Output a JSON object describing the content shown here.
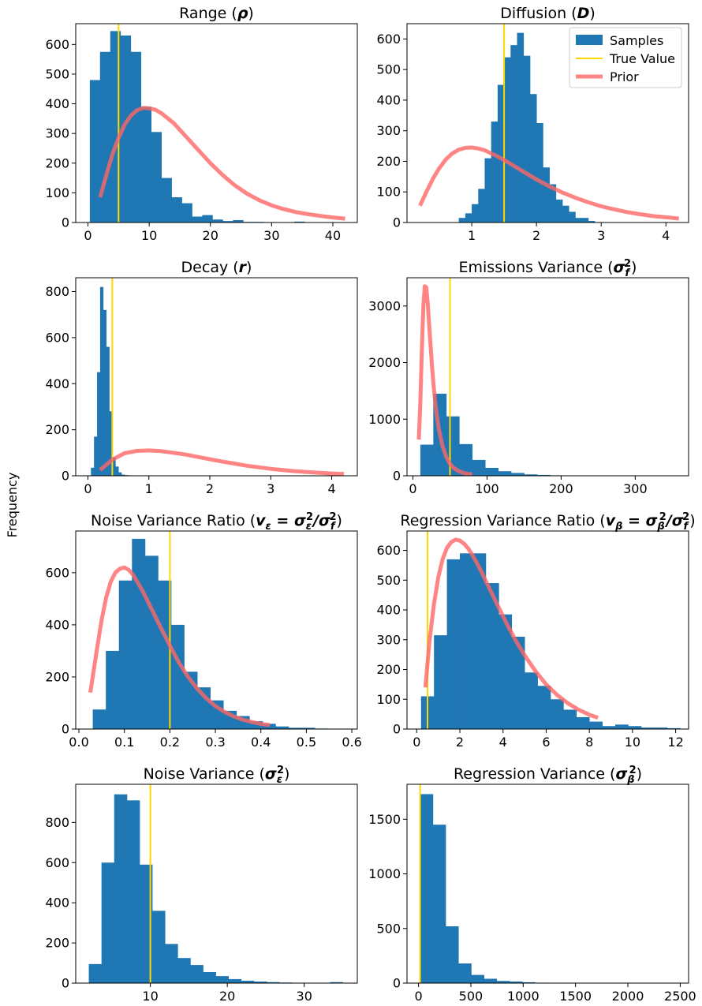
{
  "figure": {
    "ylabel": "Frequency"
  },
  "colors": {
    "samples": "#1f77b4",
    "true_value": "#ffd700",
    "prior": "#ff6666"
  },
  "legend": {
    "placement": "top-right of Diffusion panel",
    "entries": [
      {
        "label": "Samples",
        "kind": "patch"
      },
      {
        "label": "True Value",
        "kind": "line"
      },
      {
        "label": "Prior",
        "kind": "thick-line"
      }
    ]
  },
  "chart_data": [
    {
      "type": "bar",
      "title_parts": [
        {
          "t": "Range ("
        },
        {
          "t": "ρ",
          "style": "bi"
        },
        {
          "t": ")"
        }
      ],
      "xlim": [
        -2,
        44
      ],
      "ylim": [
        0,
        670
      ],
      "xticks": [
        0,
        10,
        20,
        30,
        40
      ],
      "yticks": [
        0,
        100,
        200,
        300,
        400,
        500,
        600
      ],
      "hist": {
        "edges": [
          0.3,
          1.97,
          3.64,
          5.31,
          6.98,
          8.65,
          10.32,
          11.99,
          13.66,
          15.33,
          17.0,
          18.67,
          20.34,
          22.01,
          23.68,
          25.35,
          27.02,
          28.69,
          30.36,
          32.03,
          33.7,
          35.37
        ],
        "counts": [
          480,
          575,
          645,
          630,
          575,
          390,
          305,
          150,
          85,
          65,
          20,
          25,
          10,
          5,
          8,
          2,
          2,
          1,
          1,
          1,
          3
        ]
      },
      "true_value": 5,
      "prior": {
        "x": [
          2,
          3,
          4,
          5,
          6,
          7,
          8,
          9,
          10,
          11,
          12,
          14,
          16,
          18,
          20,
          22,
          24,
          26,
          28,
          30,
          32,
          34,
          36,
          38,
          40,
          42
        ],
        "y": [
          85,
          160,
          230,
          285,
          330,
          360,
          378,
          386,
          385,
          380,
          368,
          335,
          290,
          245,
          200,
          160,
          125,
          97,
          75,
          58,
          45,
          35,
          28,
          22,
          17,
          13
        ]
      }
    },
    {
      "type": "bar",
      "title_parts": [
        {
          "t": "Diffusion ("
        },
        {
          "t": "D",
          "style": "bi"
        },
        {
          "t": ")"
        }
      ],
      "xlim": [
        0,
        4.35
      ],
      "ylim": [
        0,
        650
      ],
      "xticks": [
        1,
        2,
        3,
        4
      ],
      "yticks": [
        0,
        100,
        200,
        300,
        400,
        500,
        600
      ],
      "hist": {
        "edges": [
          0.8,
          0.9,
          1.0,
          1.1,
          1.2,
          1.3,
          1.4,
          1.5,
          1.6,
          1.7,
          1.8,
          1.9,
          2.0,
          2.1,
          2.2,
          2.3,
          2.4,
          2.5,
          2.6,
          2.7,
          2.8,
          2.9
        ],
        "counts": [
          15,
          30,
          60,
          110,
          210,
          330,
          450,
          540,
          580,
          620,
          545,
          420,
          325,
          180,
          125,
          75,
          55,
          35,
          15,
          15,
          5
        ]
      },
      "true_value": 1.5,
      "prior": {
        "x": [
          0.2,
          0.3,
          0.4,
          0.5,
          0.6,
          0.7,
          0.8,
          0.9,
          1.0,
          1.1,
          1.2,
          1.4,
          1.6,
          1.8,
          2.0,
          2.2,
          2.4,
          2.6,
          2.8,
          3.0,
          3.2,
          3.4,
          3.6,
          3.8,
          4.0,
          4.2
        ],
        "y": [
          55,
          100,
          143,
          178,
          206,
          226,
          238,
          244,
          245,
          242,
          236,
          216,
          192,
          166,
          141,
          118,
          98,
          81,
          66,
          53,
          43,
          34,
          27,
          21,
          17,
          13
        ]
      }
    },
    {
      "type": "bar",
      "title_parts": [
        {
          "t": "Decay ("
        },
        {
          "t": "r",
          "style": "bi"
        },
        {
          "t": ")"
        }
      ],
      "xlim": [
        -0.2,
        4.42
      ],
      "ylim": [
        0,
        860
      ],
      "xticks": [
        0,
        1,
        2,
        3,
        4
      ],
      "yticks": [
        0,
        200,
        400,
        600,
        800
      ],
      "hist": {
        "edges": [
          0.05,
          0.1,
          0.15,
          0.2,
          0.25,
          0.3,
          0.35,
          0.4,
          0.45,
          0.5,
          0.55,
          0.6,
          0.65,
          0.7
        ],
        "counts": [
          35,
          170,
          450,
          820,
          720,
          560,
          280,
          80,
          40,
          15,
          5,
          3,
          2
        ]
      },
      "true_value": 0.4,
      "prior": {
        "x": [
          0.2,
          0.4,
          0.6,
          0.8,
          1.0,
          1.2,
          1.4,
          1.6,
          1.8,
          2.0,
          2.2,
          2.4,
          2.6,
          2.8,
          3.0,
          3.2,
          3.4,
          3.6,
          3.8,
          4.0,
          4.2
        ],
        "y": [
          25,
          70,
          98,
          108,
          110,
          107,
          100,
          92,
          82,
          72,
          62,
          53,
          44,
          37,
          30,
          25,
          20,
          16,
          13,
          10,
          8
        ]
      }
    },
    {
      "type": "bar",
      "title_parts": [
        {
          "t": "Emissions Variance ("
        },
        {
          "t": "σ",
          "style": "bi"
        },
        {
          "t": "f",
          "style": "bi",
          "pos": "sub"
        },
        {
          "t": "2",
          "style": "b",
          "pos": "sup"
        },
        {
          "t": ")"
        }
      ],
      "xlim": [
        -8,
        372
      ],
      "ylim": [
        0,
        3500
      ],
      "xticks": [
        0,
        100,
        200,
        300
      ],
      "yticks": [
        0,
        1000,
        2000,
        3000
      ],
      "hist": {
        "edges": [
          10,
          27.5,
          45,
          62.5,
          80,
          97.5,
          115,
          132.5,
          150,
          167.5,
          185,
          202.5,
          220,
          237.5,
          255,
          272.5,
          290,
          307.5,
          325,
          342.5,
          360
        ],
        "counts": [
          550,
          1450,
          1050,
          560,
          280,
          140,
          80,
          50,
          25,
          15,
          8,
          5,
          5,
          3,
          2,
          1,
          1,
          1,
          1,
          1
        ]
      },
      "true_value": 50,
      "prior": {
        "x": [
          8,
          10,
          12,
          14,
          16,
          18,
          20,
          22,
          24,
          26,
          28,
          30,
          32,
          35,
          40,
          45,
          50,
          55,
          60,
          65,
          70,
          75,
          80
        ],
        "y": [
          640,
          1300,
          2200,
          3000,
          3350,
          3330,
          3050,
          2650,
          2250,
          1900,
          1580,
          1310,
          1080,
          820,
          520,
          330,
          210,
          140,
          95,
          65,
          45,
          32,
          22
        ]
      }
    },
    {
      "type": "bar",
      "title_parts": [
        {
          "t": "Noise Variance Ratio ("
        },
        {
          "t": "v",
          "style": "bi"
        },
        {
          "t": "ε",
          "style": "bi",
          "pos": "sub"
        },
        {
          "t": " = ",
          "style": "b"
        },
        {
          "t": "σ",
          "style": "bi"
        },
        {
          "t": "ε",
          "style": "bi",
          "pos": "sub"
        },
        {
          "t": "2",
          "style": "b",
          "pos": "sup"
        },
        {
          "t": "/",
          "style": "bi"
        },
        {
          "t": "σ",
          "style": "bi"
        },
        {
          "t": "f",
          "style": "bi",
          "pos": "sub"
        },
        {
          "t": "2",
          "style": "b",
          "pos": "sup"
        },
        {
          "t": ")"
        }
      ],
      "xlim": [
        -0.007,
        0.612
      ],
      "ylim": [
        0,
        760
      ],
      "xticks": [
        0.0,
        0.1,
        0.2,
        0.3,
        0.4,
        0.5,
        0.6
      ],
      "yticks": [
        0,
        200,
        400,
        600
      ],
      "hist": {
        "edges": [
          0.0305,
          0.0592,
          0.0879,
          0.1166,
          0.1453,
          0.174,
          0.2027,
          0.2314,
          0.2601,
          0.2888,
          0.3175,
          0.3462,
          0.3749,
          0.4036,
          0.4323,
          0.461,
          0.4897,
          0.5184,
          0.5471,
          0.5758,
          0.6045
        ],
        "counts": [
          75,
          300,
          570,
          730,
          665,
          570,
          400,
          220,
          160,
          110,
          70,
          50,
          30,
          20,
          10,
          5,
          5,
          2,
          1,
          1
        ]
      },
      "true_value": 0.2,
      "prior": {
        "x": [
          0.025,
          0.04,
          0.05,
          0.06,
          0.07,
          0.08,
          0.09,
          0.1,
          0.11,
          0.12,
          0.14,
          0.16,
          0.18,
          0.2,
          0.22,
          0.24,
          0.26,
          0.28,
          0.3,
          0.32,
          0.34,
          0.36,
          0.38,
          0.4,
          0.42
        ],
        "y": [
          140,
          310,
          420,
          505,
          565,
          600,
          615,
          620,
          610,
          590,
          530,
          460,
          390,
          320,
          255,
          200,
          155,
          118,
          88,
          66,
          49,
          36,
          27,
          20,
          15
        ]
      }
    },
    {
      "type": "bar",
      "title_parts": [
        {
          "t": "Regression Variance Ratio ("
        },
        {
          "t": "v",
          "style": "bi"
        },
        {
          "t": "β",
          "style": "bi",
          "pos": "sub"
        },
        {
          "t": " = ",
          "style": "b"
        },
        {
          "t": "σ",
          "style": "bi"
        },
        {
          "t": "β",
          "style": "bi",
          "pos": "sub"
        },
        {
          "t": "2",
          "style": "b",
          "pos": "sup"
        },
        {
          "t": "/",
          "style": "bi"
        },
        {
          "t": "σ",
          "style": "bi"
        },
        {
          "t": "f",
          "style": "bi",
          "pos": "sub"
        },
        {
          "t": "2",
          "style": "b",
          "pos": "sup"
        },
        {
          "t": ")"
        }
      ],
      "xlim": [
        -0.45,
        12.6
      ],
      "ylim": [
        0,
        665
      ],
      "xticks": [
        0,
        2,
        4,
        6,
        8,
        10,
        12
      ],
      "yticks": [
        0,
        100,
        200,
        300,
        400,
        500,
        600
      ],
      "hist": {
        "edges": [
          0.2,
          0.8,
          1.4,
          2.0,
          2.6,
          3.2,
          3.8,
          4.4,
          5.0,
          5.6,
          6.2,
          6.8,
          7.4,
          8.0,
          8.6,
          9.2,
          9.8,
          10.4,
          11.0,
          11.6,
          12.2
        ],
        "counts": [
          110,
          315,
          570,
          590,
          590,
          490,
          385,
          310,
          190,
          145,
          100,
          65,
          40,
          25,
          10,
          15,
          10,
          5,
          5,
          3
        ]
      },
      "true_value": 0.5,
      "prior": {
        "x": [
          0.4,
          0.6,
          0.8,
          1.0,
          1.2,
          1.4,
          1.6,
          1.8,
          2.0,
          2.2,
          2.4,
          2.6,
          2.8,
          3.0,
          3.4,
          3.8,
          4.2,
          4.6,
          5.0,
          5.5,
          6.0,
          6.5,
          7.0,
          7.5,
          8.0,
          8.4
        ],
        "y": [
          140,
          300,
          420,
          510,
          570,
          608,
          628,
          636,
          633,
          622,
          605,
          582,
          556,
          528,
          468,
          408,
          350,
          296,
          248,
          195,
          150,
          115,
          87,
          65,
          48,
          38
        ]
      }
    },
    {
      "type": "bar",
      "title_parts": [
        {
          "t": "Noise Variance ("
        },
        {
          "t": "σ",
          "style": "bi"
        },
        {
          "t": "ε",
          "style": "bi",
          "pos": "sub"
        },
        {
          "t": "2",
          "style": "b",
          "pos": "sup"
        },
        {
          "t": ")"
        }
      ],
      "xlim": [
        0.3,
        36.9
      ],
      "ylim": [
        0,
        990
      ],
      "xticks": [
        10,
        20,
        30
      ],
      "yticks": [
        0,
        200,
        400,
        600,
        800
      ],
      "hist": {
        "edges": [
          2,
          3.65,
          5.3,
          6.95,
          8.6,
          10.25,
          11.9,
          13.55,
          15.2,
          16.85,
          18.5,
          20.15,
          21.8,
          23.45,
          25.1,
          26.75,
          28.4,
          30.05,
          31.7,
          33.35,
          35.0
        ],
        "counts": [
          95,
          600,
          940,
          910,
          590,
          360,
          195,
          125,
          90,
          55,
          35,
          20,
          12,
          8,
          5,
          3,
          2,
          1,
          1,
          5
        ]
      },
      "true_value": 10
    },
    {
      "type": "bar",
      "title_parts": [
        {
          "t": "Regression Variance ("
        },
        {
          "t": "σ",
          "style": "bi"
        },
        {
          "t": "β",
          "style": "bi",
          "pos": "sub"
        },
        {
          "t": "2",
          "style": "b",
          "pos": "sup"
        },
        {
          "t": ")"
        }
      ],
      "xlim": [
        -110,
        2580
      ],
      "ylim": [
        0,
        1820
      ],
      "xticks": [
        0,
        500,
        1000,
        1500,
        2000,
        2500
      ],
      "yticks": [
        0,
        500,
        1000,
        1500
      ],
      "hist": {
        "edges": [
          15,
          137,
          259,
          381,
          503,
          625,
          747,
          869,
          991,
          1113,
          1235,
          1357,
          1479,
          1601,
          1723,
          1845,
          1967,
          2089,
          2211,
          2333,
          2455
        ],
        "counts": [
          1730,
          1450,
          520,
          180,
          75,
          40,
          20,
          15,
          8,
          4,
          3,
          2,
          2,
          1,
          1,
          1,
          1,
          1,
          1,
          1
        ]
      },
      "true_value": 15
    }
  ]
}
